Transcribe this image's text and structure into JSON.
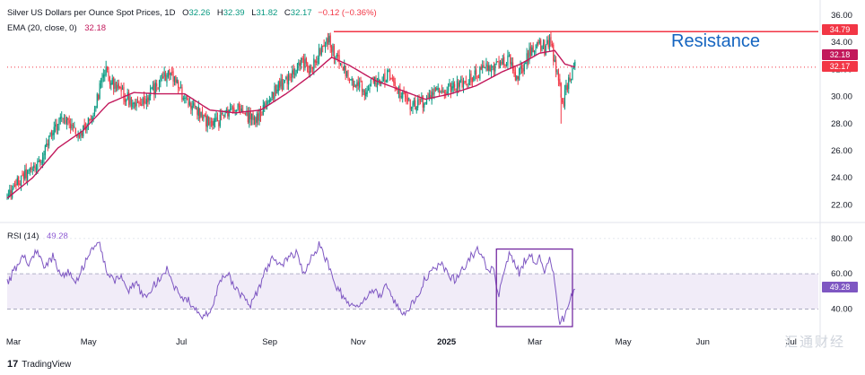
{
  "header": {
    "symbol_title": "Silver US Dollars per Ounce Spot Prices, 1D",
    "open_label": "O",
    "open": "32.26",
    "high_label": "H",
    "high": "32.39",
    "low_label": "L",
    "low": "31.82",
    "close_label": "C",
    "close": "32.17",
    "change": "−0.12 (−0.36%)",
    "ema_label": "EMA (20, close, 0)",
    "ema_value": "32.18",
    "rsi_label": "RSI (14)",
    "rsi_value": "49.28"
  },
  "annotation": {
    "resistance_text": "Resistance"
  },
  "price_tags": {
    "resistance": "34.79",
    "ema": "32.18",
    "last": "32.17"
  },
  "rsi_tag": "49.28",
  "branding": {
    "logo_text": "TradingView",
    "watermark": "汇通财经"
  },
  "colors": {
    "up": "#089981",
    "down": "#f23645",
    "ema": "#c2185b",
    "rsi": "#7e57c2",
    "resistance": "#f23645",
    "annotation": "#1565c0"
  },
  "chart_data": [
    {
      "type": "candlestick",
      "title": "Silver US Dollars per Ounce Spot Prices, 1D",
      "x_tick_labels": [
        "Mar",
        "May",
        "Jul",
        "Sep",
        "Nov",
        "2025",
        "Mar",
        "May",
        "Jun",
        "Jul"
      ],
      "y_tick_labels": [
        "22.00",
        "24.00",
        "26.00",
        "28.00",
        "30.00",
        "32.00",
        "34.00",
        "36.00"
      ],
      "ylim": [
        21.5,
        36.2
      ],
      "grid": false,
      "series_close_approx": [
        [
          0,
          22.6
        ],
        [
          4,
          23.0
        ],
        [
          8,
          23.6
        ],
        [
          14,
          24.2
        ],
        [
          20,
          24.6
        ],
        [
          26,
          25.3
        ],
        [
          32,
          26.5
        ],
        [
          38,
          27.8
        ],
        [
          44,
          28.6
        ],
        [
          50,
          28.0
        ],
        [
          56,
          27.0
        ],
        [
          62,
          27.8
        ],
        [
          66,
          28.5
        ],
        [
          70,
          29.5
        ],
        [
          74,
          30.9
        ],
        [
          78,
          31.8
        ],
        [
          82,
          31.2
        ],
        [
          88,
          30.3
        ],
        [
          94,
          30.0
        ],
        [
          100,
          29.5
        ],
        [
          106,
          29.3
        ],
        [
          112,
          30.1
        ],
        [
          118,
          30.8
        ],
        [
          124,
          31.5
        ],
        [
          130,
          31.7
        ],
        [
          136,
          30.4
        ],
        [
          142,
          29.7
        ],
        [
          148,
          29.2
        ],
        [
          154,
          28.6
        ],
        [
          160,
          27.9
        ],
        [
          166,
          28.1
        ],
        [
          172,
          28.8
        ],
        [
          178,
          29.3
        ],
        [
          184,
          29.0
        ],
        [
          190,
          28.4
        ],
        [
          196,
          28.3
        ],
        [
          202,
          29.0
        ],
        [
          208,
          30.0
        ],
        [
          214,
          30.7
        ],
        [
          220,
          31.2
        ],
        [
          226,
          31.7
        ],
        [
          232,
          32.5
        ],
        [
          238,
          32.1
        ],
        [
          244,
          32.9
        ],
        [
          250,
          33.8
        ],
        [
          254,
          34.3
        ],
        [
          258,
          33.2
        ],
        [
          262,
          32.6
        ],
        [
          266,
          32.2
        ],
        [
          270,
          31.0
        ],
        [
          276,
          30.8
        ],
        [
          282,
          30.5
        ],
        [
          288,
          31.0
        ],
        [
          294,
          31.1
        ],
        [
          300,
          31.6
        ],
        [
          306,
          30.8
        ],
        [
          312,
          30.0
        ],
        [
          318,
          29.4
        ],
        [
          324,
          29.4
        ],
        [
          330,
          29.7
        ],
        [
          336,
          30.2
        ],
        [
          342,
          30.4
        ],
        [
          348,
          30.6
        ],
        [
          354,
          30.7
        ],
        [
          360,
          30.9
        ],
        [
          366,
          31.3
        ],
        [
          372,
          31.8
        ],
        [
          378,
          32.1
        ],
        [
          384,
          32.3
        ],
        [
          390,
          32.5
        ],
        [
          396,
          32.7
        ],
        [
          400,
          31.6
        ],
        [
          404,
          31.7
        ],
        [
          408,
          32.3
        ],
        [
          412,
          33.2
        ],
        [
          416,
          33.8
        ],
        [
          420,
          33.9
        ],
        [
          424,
          33.5
        ],
        [
          428,
          34.0
        ],
        [
          432,
          32.7
        ],
        [
          436,
          30.5
        ],
        [
          439,
          29.7
        ],
        [
          442,
          30.9
        ],
        [
          445,
          31.6
        ],
        [
          448,
          32.17
        ]
      ],
      "ema_approx": [
        [
          0,
          22.5
        ],
        [
          20,
          24.0
        ],
        [
          40,
          26.2
        ],
        [
          60,
          27.5
        ],
        [
          80,
          29.5
        ],
        [
          100,
          30.3
        ],
        [
          120,
          30.2
        ],
        [
          140,
          30.2
        ],
        [
          160,
          29.0
        ],
        [
          180,
          28.8
        ],
        [
          200,
          29.0
        ],
        [
          220,
          30.2
        ],
        [
          240,
          31.6
        ],
        [
          256,
          32.9
        ],
        [
          270,
          32.3
        ],
        [
          290,
          31.2
        ],
        [
          310,
          30.5
        ],
        [
          330,
          29.8
        ],
        [
          350,
          30.2
        ],
        [
          370,
          30.8
        ],
        [
          390,
          31.8
        ],
        [
          405,
          32.4
        ],
        [
          420,
          33.2
        ],
        [
          432,
          33.4
        ],
        [
          440,
          32.4
        ],
        [
          448,
          32.18
        ]
      ],
      "resistance_level": 34.79,
      "annotation": "Resistance"
    },
    {
      "type": "line",
      "title": "RSI (14)",
      "y_tick_labels": [
        "40.00",
        "60.00",
        "80.00"
      ],
      "ylim": [
        28,
        85
      ],
      "band": [
        40,
        60
      ],
      "last_value": 49.28,
      "rsi_approx": [
        [
          0,
          55
        ],
        [
          6,
          62
        ],
        [
          12,
          70
        ],
        [
          18,
          66
        ],
        [
          24,
          74
        ],
        [
          30,
          63
        ],
        [
          36,
          70
        ],
        [
          42,
          58
        ],
        [
          48,
          61
        ],
        [
          54,
          55
        ],
        [
          60,
          64
        ],
        [
          66,
          74
        ],
        [
          72,
          80
        ],
        [
          78,
          62
        ],
        [
          84,
          55
        ],
        [
          90,
          58
        ],
        [
          96,
          50
        ],
        [
          102,
          55
        ],
        [
          108,
          46
        ],
        [
          114,
          52
        ],
        [
          120,
          57
        ],
        [
          126,
          63
        ],
        [
          132,
          52
        ],
        [
          138,
          47
        ],
        [
          144,
          44
        ],
        [
          150,
          38
        ],
        [
          156,
          36
        ],
        [
          162,
          42
        ],
        [
          168,
          56
        ],
        [
          174,
          60
        ],
        [
          180,
          52
        ],
        [
          186,
          46
        ],
        [
          192,
          42
        ],
        [
          198,
          50
        ],
        [
          204,
          62
        ],
        [
          210,
          70
        ],
        [
          216,
          64
        ],
        [
          222,
          69
        ],
        [
          228,
          72
        ],
        [
          234,
          60
        ],
        [
          240,
          70
        ],
        [
          246,
          76
        ],
        [
          252,
          68
        ],
        [
          258,
          55
        ],
        [
          264,
          48
        ],
        [
          270,
          44
        ],
        [
          276,
          40
        ],
        [
          282,
          45
        ],
        [
          288,
          52
        ],
        [
          294,
          48
        ],
        [
          300,
          54
        ],
        [
          306,
          44
        ],
        [
          312,
          38
        ],
        [
          318,
          41
        ],
        [
          324,
          48
        ],
        [
          330,
          58
        ],
        [
          336,
          62
        ],
        [
          342,
          66
        ],
        [
          348,
          60
        ],
        [
          354,
          56
        ],
        [
          360,
          63
        ],
        [
          366,
          70
        ],
        [
          372,
          74
        ],
        [
          378,
          64
        ],
        [
          384,
          61
        ],
        [
          388,
          48
        ],
        [
          392,
          61
        ],
        [
          396,
          72
        ],
        [
          400,
          68
        ],
        [
          404,
          60
        ],
        [
          408,
          67
        ],
        [
          412,
          72
        ],
        [
          416,
          66
        ],
        [
          420,
          70
        ],
        [
          424,
          62
        ],
        [
          428,
          68
        ],
        [
          432,
          56
        ],
        [
          436,
          32
        ],
        [
          439,
          35
        ],
        [
          442,
          42
        ],
        [
          445,
          49
        ],
        [
          448,
          49.28
        ]
      ],
      "highlight_box": {
        "x_from": 386,
        "x_to": 446,
        "y_from": 30,
        "y_to": 74
      }
    }
  ]
}
